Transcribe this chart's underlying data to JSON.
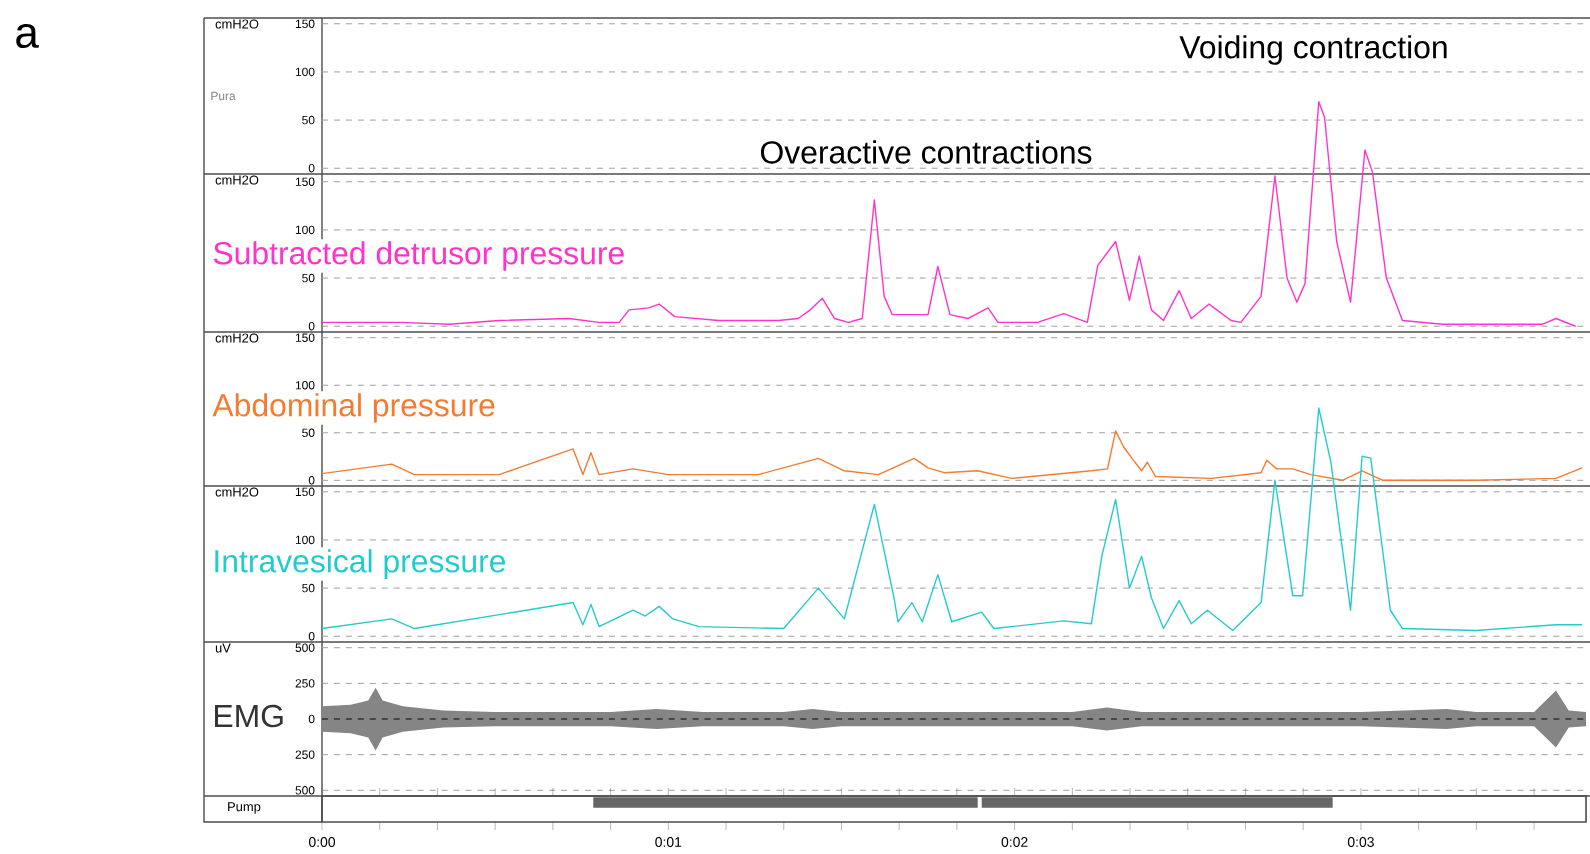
{
  "chart_data": [
    {
      "type": "line",
      "ylabel": "cmH2O",
      "annotations": [
        "a",
        "Pura",
        "Overactive contractions",
        "Voiding contraction"
      ],
      "xlim": [
        0,
        219
      ],
      "ylim": [
        -6,
        156
      ],
      "yticks": [
        0,
        50,
        100,
        150
      ],
      "grid": "y",
      "tick_labels": "y"
    },
    {
      "type": "line",
      "ylabel": "cmH2O",
      "series": [
        {
          "name": "Subtracted detrusor pressure",
          "color": "#ff33cc",
          "x": [
            0,
            13.5,
            22.1,
            30.7,
            42.8,
            48,
            51.5,
            53.2,
            56.6,
            58.4,
            61.1,
            68.7,
            79.1,
            82.5,
            84.6,
            86.7,
            88.8,
            91.2,
            93.6,
            95.7,
            97.4,
            98.8,
            105,
            106.7,
            108.8,
            111.9,
            115.4,
            117.1,
            124,
            128.5,
            132.6,
            134.4,
            137.5,
            139.9,
            141.6,
            143.7,
            145.8,
            148.5,
            150.6,
            153.7,
            157.5,
            159.2,
            162.7,
            165.1,
            167.2,
            168.9,
            170.3,
            172.7,
            173.7,
            175.8,
            178.2,
            180.7,
            182,
            184.4,
            187.2,
            194.1,
            211.4,
            213.8,
            217.2
          ],
          "values": [
            4,
            4,
            2,
            6,
            8,
            4,
            4,
            17,
            19,
            23,
            10,
            6,
            6,
            8,
            17,
            29,
            8,
            4,
            8,
            131,
            31,
            12,
            12,
            62,
            12,
            8,
            19,
            4,
            4,
            13,
            4,
            63,
            88,
            27,
            73,
            17,
            6,
            37,
            8,
            23,
            6,
            4,
            31,
            156,
            50,
            25,
            44,
            233,
            217,
            88,
            25,
            183,
            160,
            50,
            6,
            2,
            2,
            8,
            0
          ]
        }
      ],
      "xlim": [
        0,
        219
      ],
      "ylim": [
        -6,
        320
      ],
      "yticks": [
        0,
        50,
        100,
        150
      ],
      "grid": "y",
      "tick_labels": "y"
    },
    {
      "type": "line",
      "ylabel": "cmH2O",
      "series": [
        {
          "name": "Abdominal pressure",
          "color": "#f47b30",
          "x": [
            0,
            12.1,
            16,
            30.7,
            43.5,
            45.2,
            46.6,
            48,
            53.9,
            60,
            75.6,
            86,
            90.5,
            96.4,
            102.6,
            105,
            107.8,
            113.6,
            119.5,
            133.3,
            136.1,
            137.5,
            138.9,
            140.6,
            142,
            143,
            144.4,
            154.1,
            162.7,
            163.7,
            165.4,
            168.2,
            171.3,
            176.8,
            180.2,
            183.8,
            200,
            213.8,
            218.3
          ],
          "values": [
            7,
            17,
            6,
            6,
            33,
            6,
            29,
            6,
            12,
            6,
            6,
            23,
            10,
            6,
            23,
            13,
            8,
            10,
            2,
            10,
            12,
            52,
            35,
            21,
            10,
            19,
            4,
            2,
            8,
            21,
            12,
            12,
            6,
            0,
            10,
            0,
            0,
            2,
            13
          ]
        }
      ],
      "xlim": [
        0,
        219
      ],
      "ylim": [
        -6,
        156
      ],
      "yticks": [
        0,
        50,
        100,
        150
      ],
      "grid": "y",
      "tick_labels": "y"
    },
    {
      "type": "line",
      "ylabel": "cmH2O",
      "series": [
        {
          "name": "Intravesical pressure",
          "color": "#22cccc",
          "x": [
            0,
            12.1,
            16,
            43.5,
            45.2,
            46.6,
            48,
            53.9,
            56,
            58.4,
            60.8,
            65.3,
            80,
            86,
            90.5,
            95.7,
            99.1,
            99.8,
            102.2,
            104,
            106.7,
            109.1,
            114.3,
            116.4,
            128.5,
            133.3,
            135.1,
            137.5,
            139.9,
            142,
            143.7,
            145.8,
            148.5,
            150.6,
            153.4,
            157.8,
            162.7,
            165.1,
            168.2,
            169.9,
            172.7,
            174.8,
            178.2,
            180.2,
            181.7,
            185.1,
            187.2,
            200,
            213.8,
            218.3
          ],
          "values": [
            8,
            18,
            8,
            35,
            12,
            33,
            10,
            27,
            21,
            31,
            18,
            10,
            8,
            50,
            18,
            137,
            40,
            15,
            35,
            15,
            64,
            15,
            25,
            8,
            16,
            13,
            83,
            142,
            50,
            83,
            40,
            8,
            37,
            13,
            27,
            6,
            35,
            162,
            42,
            42,
            237,
            181,
            27,
            187,
            185,
            27,
            8,
            6,
            12,
            12
          ]
        }
      ],
      "xlim": [
        0,
        219
      ],
      "ylim": [
        -6,
        316
      ],
      "yticks": [
        0,
        50,
        100,
        150
      ],
      "grid": "y",
      "tick_labels": "y"
    },
    {
      "type": "line",
      "ylabel": "uV",
      "series": [
        {
          "name": "EMG",
          "color": "#333333",
          "line_style": "dashed",
          "x": [
            0,
            5,
            8,
            9.3,
            10.5,
            14,
            21,
            30,
            50,
            58,
            66,
            80,
            85,
            90,
            110,
            130,
            136,
            142,
            160,
            180,
            194.8,
            200,
            210,
            213.8,
            216,
            219
          ],
          "values": [
            0,
            0,
            0,
            0,
            0,
            0,
            0,
            0,
            0,
            0,
            0,
            0,
            0,
            0,
            0,
            0,
            0,
            0,
            0,
            0,
            0,
            0,
            0,
            0,
            0,
            0
          ],
          "upper": [
            90,
            100,
            130,
            220,
            130,
            90,
            60,
            50,
            50,
            70,
            50,
            50,
            70,
            50,
            50,
            50,
            80,
            50,
            50,
            50,
            70,
            50,
            50,
            200,
            60,
            50
          ],
          "lower": [
            -90,
            -100,
            -130,
            -220,
            -130,
            -90,
            -60,
            -50,
            -50,
            -70,
            -50,
            -50,
            -70,
            -50,
            -50,
            -50,
            -80,
            -50,
            -50,
            -50,
            -70,
            -50,
            -50,
            -200,
            -60,
            -50
          ]
        }
      ],
      "xlim": [
        0,
        219
      ],
      "ylim": [
        -540,
        540
      ],
      "yticks": [
        {
          "value": -500,
          "label": "500"
        },
        {
          "value": -250,
          "label": "250"
        },
        0,
        250,
        500
      ],
      "grid": "y",
      "tick_labels": "y"
    },
    {
      "type": "bar",
      "orientation": "horizontal",
      "ylabel": "Pump",
      "categories": [
        null
      ],
      "series": [
        {
          "color": "#666666",
          "values": [
            66.6
          ],
          "base": [
            47
          ]
        },
        {
          "color": "#666666",
          "values": [
            60.8
          ],
          "base": [
            114.3
          ]
        }
      ],
      "xlim": [
        0,
        219
      ],
      "xticks": [
        {
          "value": 0,
          "label": "0:00"
        },
        {
          "value": 10,
          "label": null
        },
        {
          "value": 20,
          "label": null
        },
        {
          "value": 30,
          "label": null
        },
        {
          "value": 40,
          "label": null
        },
        {
          "value": 50,
          "label": null
        },
        {
          "value": 60,
          "label": "0:01"
        },
        {
          "value": 70,
          "label": null
        },
        {
          "value": 80,
          "label": null
        },
        {
          "value": 90,
          "label": null
        },
        {
          "value": 100,
          "label": null
        },
        {
          "value": 110,
          "label": null
        },
        {
          "value": 120,
          "label": "0:02"
        },
        {
          "value": 130,
          "label": null
        },
        {
          "value": 140,
          "label": null
        },
        {
          "value": 150,
          "label": null
        },
        {
          "value": 160,
          "label": null
        },
        {
          "value": 170,
          "label": null
        },
        {
          "value": 180,
          "label": "0:03"
        },
        {
          "value": 190,
          "label": null
        },
        {
          "value": 200,
          "label": null
        },
        {
          "value": 210,
          "label": null
        }
      ],
      "tick_labels": "x"
    }
  ]
}
